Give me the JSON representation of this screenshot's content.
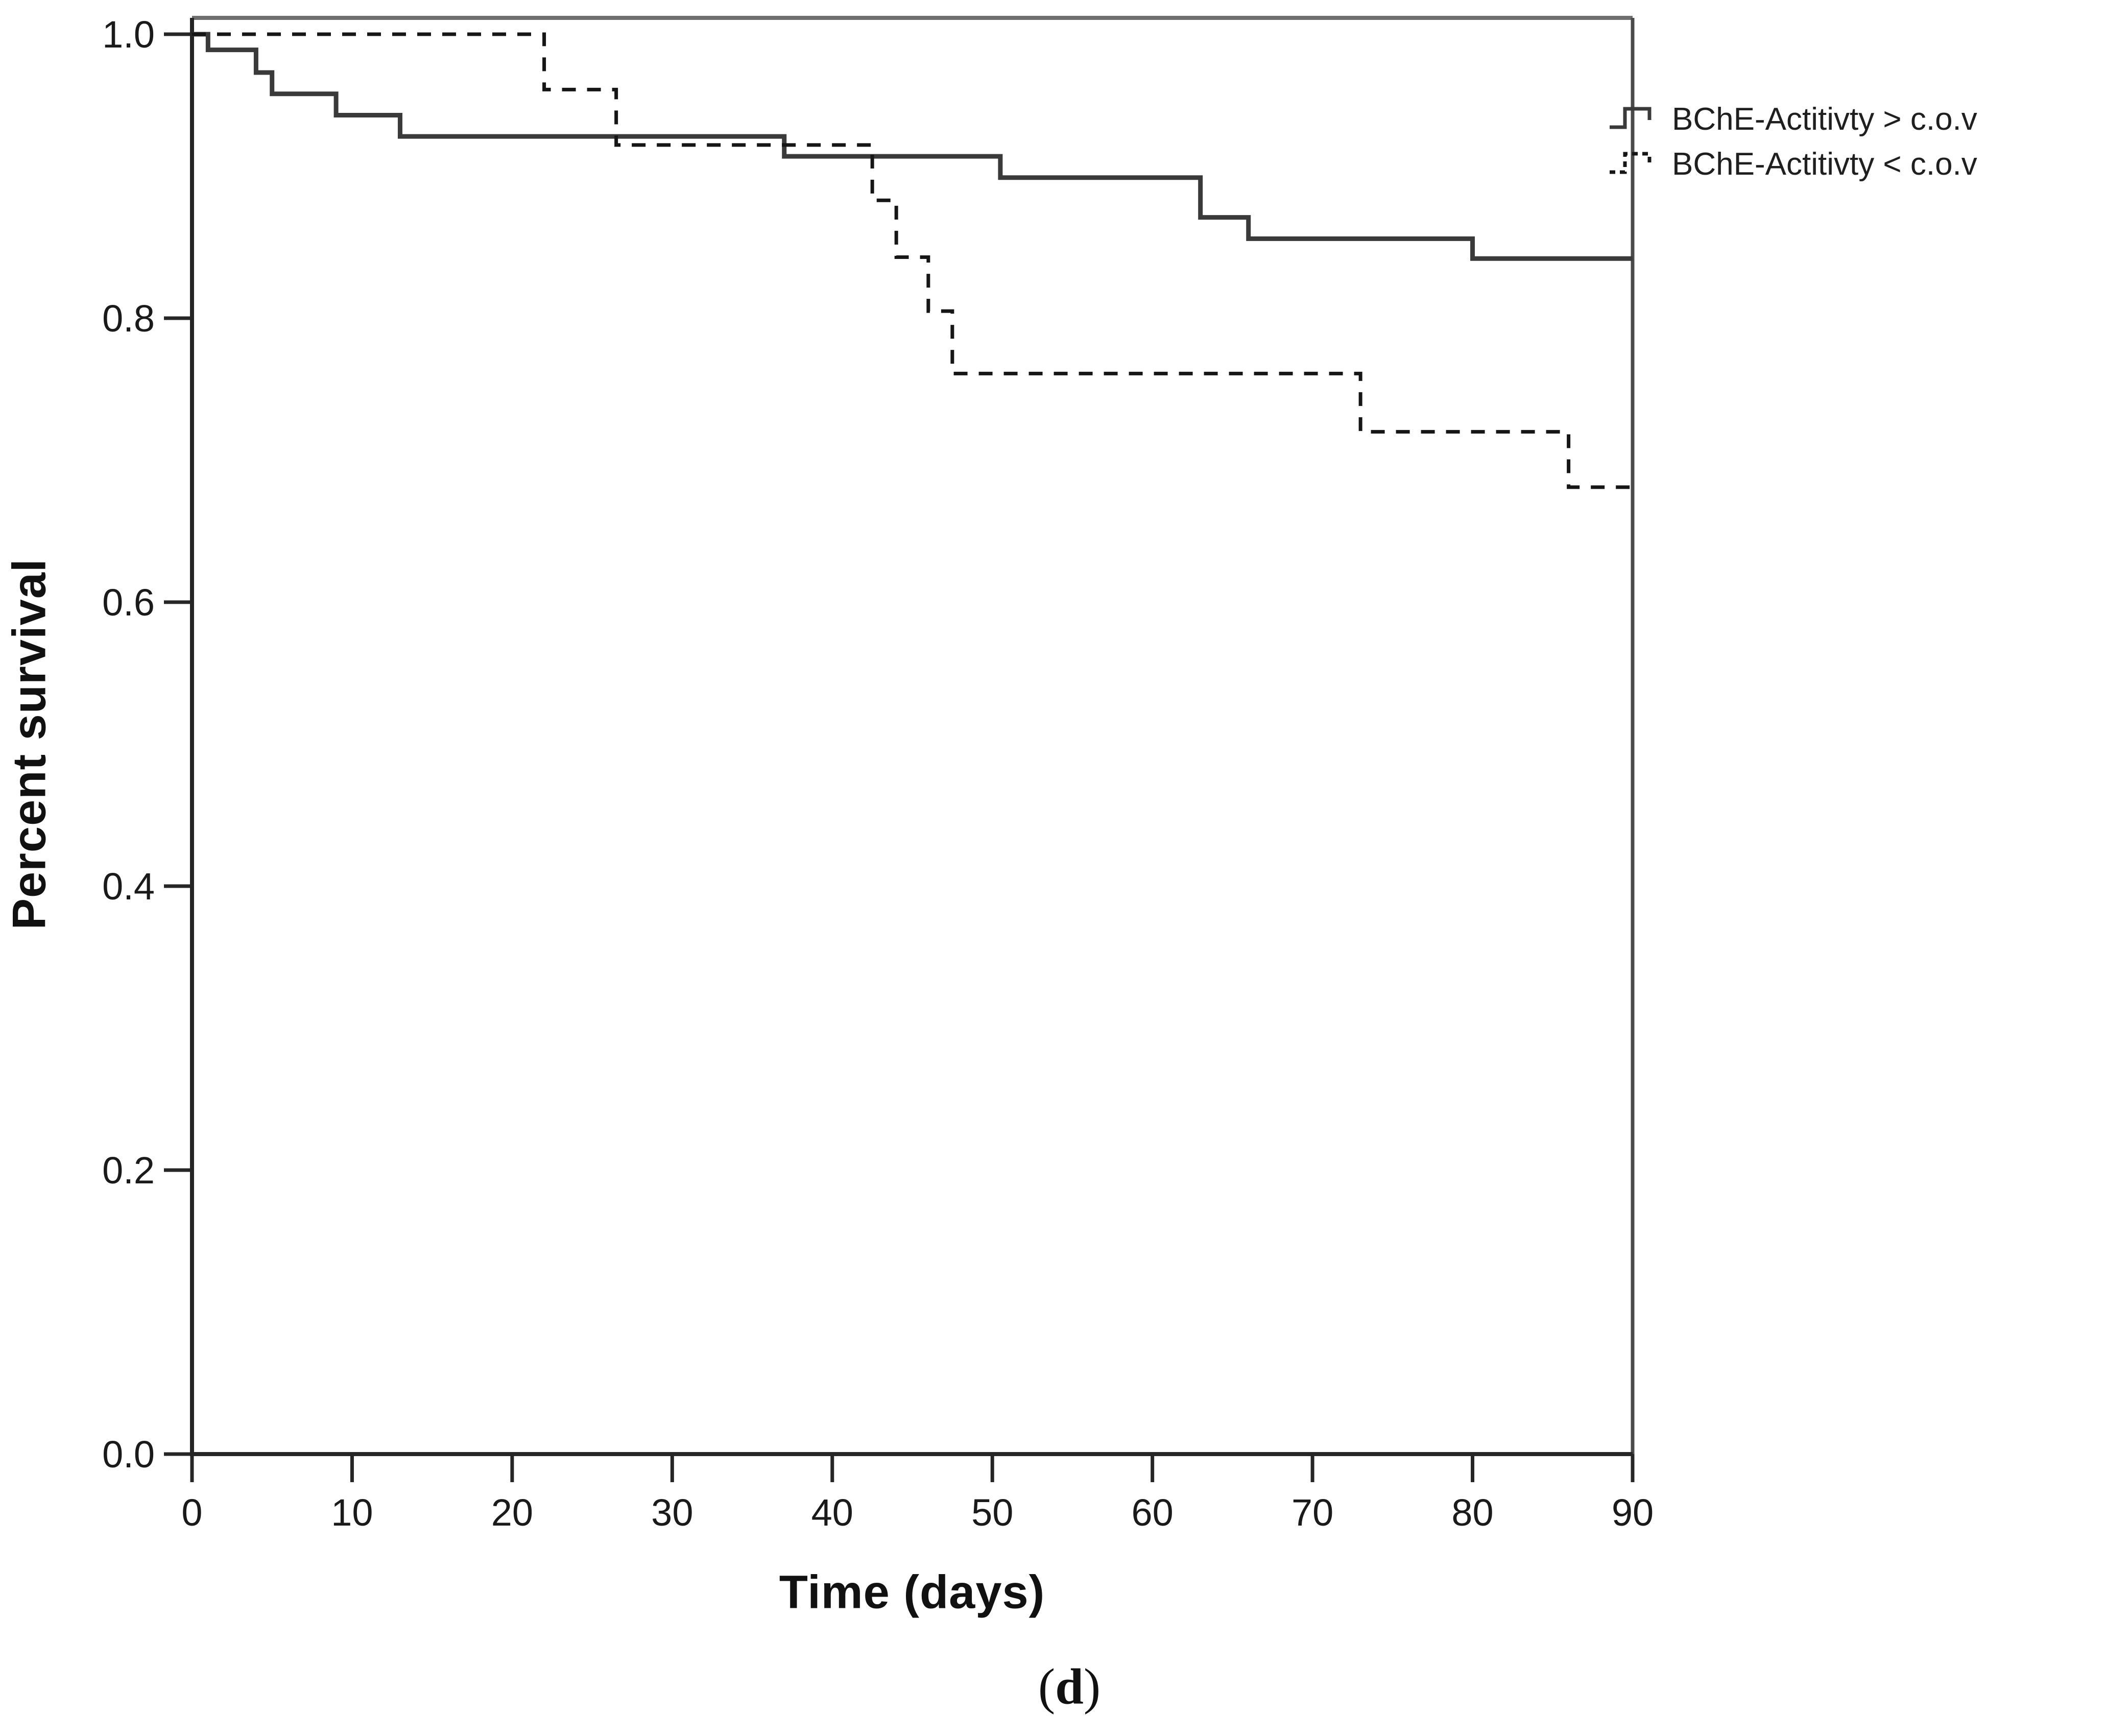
{
  "figure": {
    "caption_open": "(",
    "caption_letter": "d",
    "caption_close": ")",
    "background": "#ffffff"
  },
  "chart_data": {
    "type": "line",
    "subtype": "kaplan-meier-step",
    "title": "",
    "xlabel": "Time (days)",
    "ylabel": "Percent survival",
    "xlim": [
      0,
      90
    ],
    "ylim": [
      0.0,
      1.0
    ],
    "x_ticks": [
      0,
      10,
      20,
      30,
      40,
      50,
      60,
      70,
      80,
      90
    ],
    "y_ticks": [
      "0.0",
      "0.2",
      "0.4",
      "0.6",
      "0.8",
      "1.0"
    ],
    "grid": false,
    "legend_position": "outside-top-right",
    "frame": {
      "left_axis_color": "#262626",
      "bottom_axis_color": "#262626",
      "top_border_color": "#6f6f6f",
      "right_border_color": "#4a4a4a"
    },
    "series": [
      {
        "name": "BChE-Actitivty > c.o.v",
        "style": "solid",
        "color": "#3a3a3a",
        "steps": [
          [
            0,
            1.0
          ],
          [
            1,
            0.989
          ],
          [
            4,
            0.973
          ],
          [
            5,
            0.958
          ],
          [
            9,
            0.943
          ],
          [
            13,
            0.928
          ],
          [
            37,
            0.914
          ],
          [
            50.5,
            0.899
          ],
          [
            63,
            0.871
          ],
          [
            66,
            0.856
          ],
          [
            80,
            0.842
          ],
          [
            90,
            0.842
          ]
        ]
      },
      {
        "name": "BChE-Actitivty < c.o.v",
        "style": "dashed",
        "color": "#161616",
        "steps": [
          [
            0,
            1.0
          ],
          [
            22,
            0.961
          ],
          [
            26.5,
            0.922
          ],
          [
            42.5,
            0.883
          ],
          [
            44,
            0.843
          ],
          [
            46,
            0.805
          ],
          [
            47.5,
            0.761
          ],
          [
            73,
            0.72
          ],
          [
            86,
            0.681
          ],
          [
            90,
            0.681
          ]
        ]
      }
    ]
  }
}
